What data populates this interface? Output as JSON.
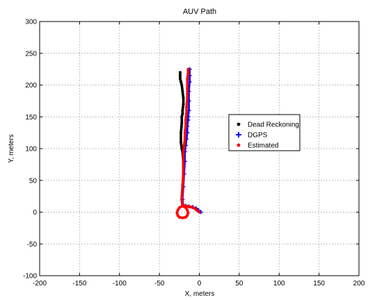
{
  "chart_data": {
    "type": "line",
    "title": "AUV Path",
    "xlabel": "X, meters",
    "ylabel": "Y, meters",
    "xlim": [
      -200,
      200
    ],
    "ylim": [
      -100,
      300
    ],
    "xticks": [
      -200,
      -150,
      -100,
      -50,
      0,
      50,
      100,
      150,
      200
    ],
    "yticks": [
      -100,
      -50,
      0,
      50,
      100,
      150,
      200,
      250,
      300
    ],
    "grid": true,
    "legend_position": "right",
    "series": [
      {
        "name": "Dead Reckoning",
        "marker": "dot",
        "color": "#000000",
        "x": [
          0,
          -3,
          -6,
          -10,
          -14,
          -18,
          -21,
          -22,
          -21,
          -20,
          -20,
          -21,
          -22,
          -23,
          -23,
          -22,
          -22,
          -21,
          -21,
          -20,
          -20,
          -21,
          -22,
          -23,
          -24,
          -24,
          -24
        ],
        "y": [
          0,
          3,
          6,
          8,
          9,
          10,
          10,
          20,
          40,
          60,
          80,
          95,
          100,
          110,
          125,
          140,
          150,
          155,
          160,
          170,
          180,
          190,
          200,
          205,
          210,
          215,
          220
        ]
      },
      {
        "name": "DGPS",
        "marker": "plus",
        "color": "#0000ff",
        "x": [
          2,
          -1,
          -4,
          -8,
          -13,
          -17,
          -20,
          -21,
          -20,
          -19,
          -18,
          -18,
          -17,
          -16,
          -15,
          -15,
          -14,
          -14,
          -13,
          -13,
          -13,
          -12,
          -12,
          -12
        ],
        "y": [
          0,
          3,
          6,
          8,
          9,
          10,
          10,
          20,
          40,
          60,
          80,
          95,
          105,
          115,
          125,
          135,
          145,
          150,
          160,
          175,
          190,
          205,
          215,
          225
        ]
      },
      {
        "name": "Estimated",
        "marker": "dot",
        "color": "#ff0000",
        "x": [
          0,
          -3,
          -6,
          -10,
          -14,
          -18,
          -21,
          -22,
          -21,
          -20,
          -20,
          -20,
          -19,
          -18,
          -18,
          -17,
          -17,
          -16,
          -16,
          -15,
          -15,
          -15,
          -14,
          -14
        ],
        "y": [
          0,
          3,
          6,
          8,
          9,
          10,
          10,
          20,
          40,
          60,
          80,
          95,
          105,
          115,
          125,
          135,
          145,
          155,
          165,
          180,
          195,
          210,
          218,
          225
        ]
      },
      {
        "name": "",
        "marker": "dot",
        "color": "#ff0000",
        "x": [
          -21,
          -17,
          -15,
          -14,
          -15,
          -17,
          -21,
          -25,
          -27,
          -28,
          -27,
          -25,
          -21
        ],
        "y": [
          10,
          7,
          3,
          -1,
          -5,
          -8,
          -9,
          -8,
          -5,
          -1,
          3,
          7,
          10
        ]
      }
    ]
  }
}
